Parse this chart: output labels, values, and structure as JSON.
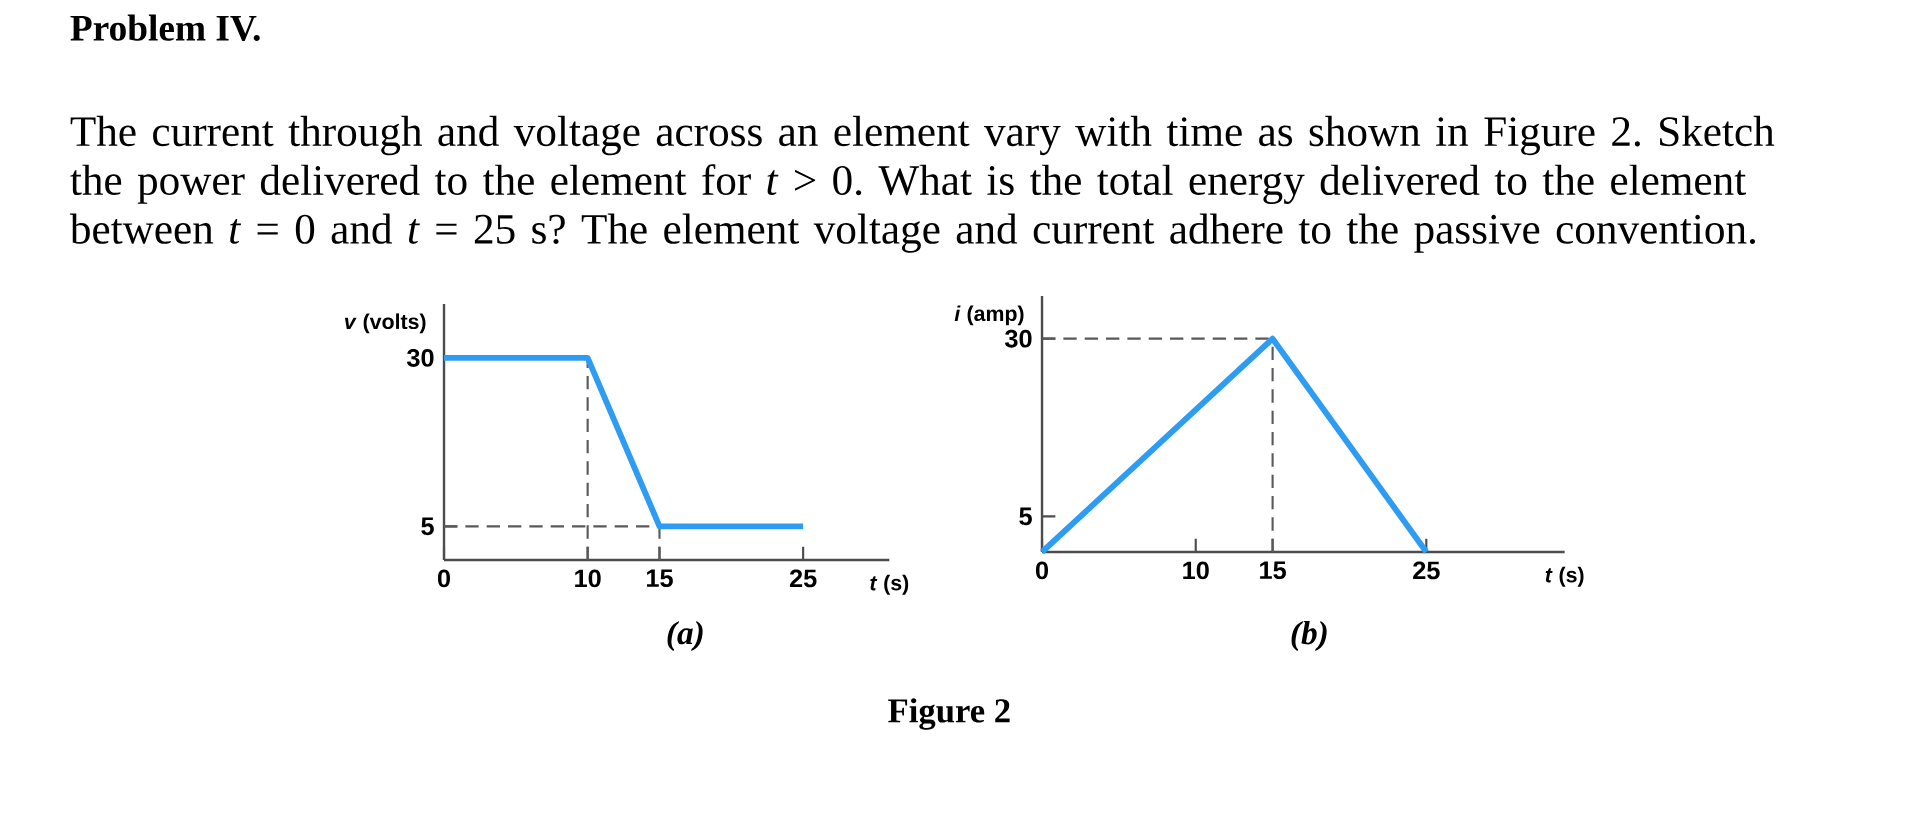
{
  "chart_data": [
    {
      "type": "line",
      "x": [
        0,
        10,
        15,
        25
      ],
      "values": [
        30,
        30,
        5,
        5
      ],
      "color": "#2e9cf2",
      "xlabel": "*t* (s)",
      "ylabel": "*v* (volts)",
      "xlim": [
        0,
        31
      ],
      "ylim": [
        0,
        38
      ],
      "xticks": [
        0,
        10,
        15,
        25
      ],
      "yticks": [
        5,
        30
      ],
      "ref_lines": [
        {
          "axis": "x",
          "value": 10,
          "line_style": "dashed"
        },
        {
          "axis": "x",
          "value": 15,
          "line_style": "dashed"
        },
        {
          "axis": "y",
          "value": 5,
          "line_style": "dashed"
        }
      ],
      "annotations": [
        "Problem IV.",
        "The current through and voltage across an element vary with time as shown in Figure 2. Sketch the power delivered to the element for *t* > 0. What is the total energy delivered to the element between *t* = 0 and *t* = 25 s? The element voltage and current adhere to the passive convention.",
        "(a)"
      ]
    },
    {
      "type": "line",
      "x": [
        0,
        15,
        25
      ],
      "values": [
        0,
        30,
        0
      ],
      "color": "#2e9cf2",
      "xlabel": "*t* (s)",
      "ylabel": "*i* (amp)",
      "xlim": [
        0,
        34
      ],
      "ylim": [
        0,
        36
      ],
      "xticks": [
        0,
        10,
        15,
        25
      ],
      "yticks": [
        5,
        30
      ],
      "ref_lines": [
        {
          "axis": "x",
          "value": 15,
          "line_style": "dashed"
        },
        {
          "axis": "y",
          "value": 30,
          "line_style": "dashed"
        }
      ],
      "annotations": [
        "(b)",
        "Figure 2"
      ]
    }
  ]
}
